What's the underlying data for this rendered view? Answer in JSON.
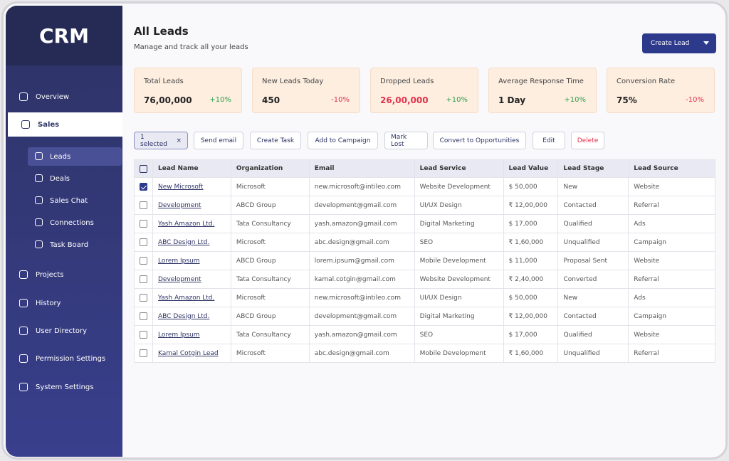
{
  "sidebar": {
    "logo": "CRM",
    "nav_top": [
      "Overview",
      "Sales"
    ],
    "sub_nav": [
      "Leads",
      "Deals",
      "Sales Chat",
      "Connections",
      "Task Board"
    ],
    "nav_bottom": [
      "Projects",
      "History",
      "User Directory",
      "Permission Settings",
      "System Settings"
    ]
  },
  "header": {
    "title": "All Leads",
    "subtitle": "Manage and track all your leads",
    "button": "Create Lead"
  },
  "stats": [
    {
      "label": "Total Leads",
      "value": "76,00,000",
      "change": "+10%"
    },
    {
      "label": "New Leads Today",
      "value": "450",
      "change": "-10%"
    },
    {
      "label": "Dropped Leads",
      "value": "26,00,000",
      "change": "+10%",
      "value_color": "#e0334c"
    },
    {
      "label": "Average Response Time",
      "value": "1 Day",
      "change": "+10%"
    },
    {
      "label": "Conversion Rate",
      "value": "75%",
      "change": "-10%"
    }
  ],
  "actions": {
    "selected": "1 selected",
    "buttons": [
      "Send email",
      "Create Task",
      "Add to Campaign",
      "Mark Lost",
      "Convert to Opportunities",
      "Edit"
    ],
    "danger": "Delete"
  },
  "table": {
    "columns": [
      "Lead Name",
      "Organization",
      "Email",
      "Lead Service",
      "Lead Value",
      "Lead Stage",
      "Lead Source"
    ],
    "rows": [
      {
        "checked": true,
        "cells": [
          "New Microsoft",
          "Microsoft",
          "new.microsoft@intileo.com",
          "Website Development",
          "$ 50,000",
          "New",
          "Website"
        ]
      },
      {
        "checked": false,
        "cells": [
          "Development",
          "ABCD Group",
          "development@gmail.com",
          "UI/UX Design",
          "₹ 12,00,000",
          "Contacted",
          "Referral"
        ]
      },
      {
        "checked": false,
        "cells": [
          "Yash Amazon Ltd.",
          "Tata Consultancy",
          "yash.amazon@gmail.com",
          "Digital Marketing",
          "$ 17,000",
          "Qualified",
          "Ads"
        ]
      },
      {
        "checked": false,
        "cells": [
          "ABC Design Ltd.",
          "Microsoft",
          "abc.design@gmail.com",
          "SEO",
          "₹ 1,60,000",
          "Unqualified",
          "Campaign"
        ]
      },
      {
        "checked": false,
        "cells": [
          "Lorem Ipsum",
          "ABCD Group",
          "lorem.ipsum@gmail.com",
          "Mobile Development",
          "$ 11,000",
          "Proposal Sent",
          "Website"
        ]
      },
      {
        "checked": false,
        "cells": [
          "Development",
          "Tata Consultancy",
          "kamal.cotgin@gmail.com",
          "Website Development",
          "₹ 2,40,000",
          "Converted",
          "Referral"
        ]
      },
      {
        "checked": false,
        "cells": [
          "Yash Amazon Ltd.",
          "Microsoft",
          "new.microsoft@intileo.com",
          "UI/UX Design",
          "$ 50,000",
          "New",
          "Ads"
        ]
      },
      {
        "checked": false,
        "cells": [
          "ABC Design Ltd.",
          "ABCD Group",
          "development@gmail.com",
          "Digital Marketing",
          "₹ 12,00,000",
          "Contacted",
          "Campaign"
        ]
      },
      {
        "checked": false,
        "cells": [
          "Lorem Ipsum",
          "Tata Consultancy",
          "yash.amazon@gmail.com",
          "SEO",
          "$ 17,000",
          "Qualified",
          "Website"
        ]
      },
      {
        "checked": false,
        "cells": [
          "Kamal Cotgin Lead",
          "Microsoft",
          "abc.design@gmail.com",
          "Mobile Development",
          "₹ 1,60,000",
          "Unqualified",
          "Referral"
        ]
      }
    ]
  }
}
